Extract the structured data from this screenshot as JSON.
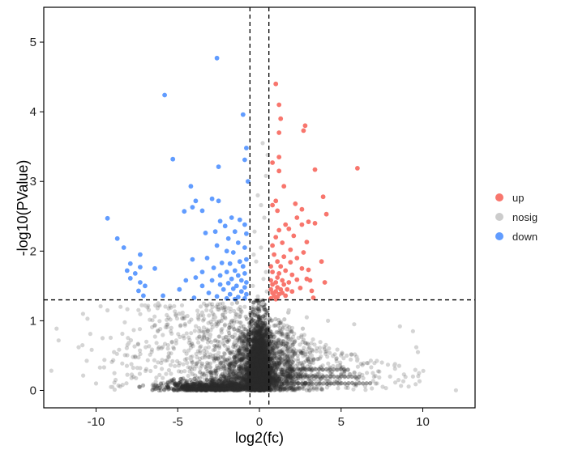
{
  "chart_data": {
    "type": "scatter",
    "title": "",
    "xlabel": "log2(fc)",
    "ylabel": "-log10(PValue)",
    "xlim": [
      -13.2,
      13.2
    ],
    "ylim": [
      -0.25,
      5.5
    ],
    "x_ticks": [
      -10,
      -5,
      0,
      5,
      10
    ],
    "x_tick_labels": [
      "-10",
      "-5",
      "0",
      "5",
      "10"
    ],
    "y_ticks": [
      0,
      1,
      2,
      3,
      4,
      5
    ],
    "y_tick_labels": [
      "0",
      "1",
      "2",
      "3",
      "4",
      "5"
    ],
    "thresholds": {
      "log2fc": [
        -0.58,
        0.58
      ],
      "neg_log10_p": 1.3
    },
    "grid": false,
    "legend_position": "right",
    "colors": {
      "up": "#F8766D",
      "nosig": "#CCCCCC",
      "down": "#619CFF",
      "threshold_line": "#000000"
    },
    "series": [
      {
        "name": "up",
        "points": [
          [
            1.0,
            4.4
          ],
          [
            1.2,
            4.1
          ],
          [
            1.3,
            3.9
          ],
          [
            1.2,
            3.7
          ],
          [
            2.8,
            3.8
          ],
          [
            2.7,
            3.73
          ],
          [
            1.2,
            3.35
          ],
          [
            0.8,
            3.27
          ],
          [
            1.2,
            3.15
          ],
          [
            3.4,
            3.17
          ],
          [
            6.0,
            3.19
          ],
          [
            1.5,
            2.93
          ],
          [
            1.0,
            2.72
          ],
          [
            3.9,
            2.78
          ],
          [
            0.8,
            2.66
          ],
          [
            1.1,
            2.58
          ],
          [
            2.2,
            2.68
          ],
          [
            2.6,
            2.6
          ],
          [
            4.1,
            2.53
          ],
          [
            2.3,
            2.48
          ],
          [
            3.0,
            2.42
          ],
          [
            1.6,
            2.38
          ],
          [
            2.6,
            2.38
          ],
          [
            3.4,
            2.4
          ],
          [
            1.2,
            2.3
          ],
          [
            1.8,
            2.32
          ],
          [
            2.1,
            2.22
          ],
          [
            1.0,
            2.2
          ],
          [
            2.9,
            2.13
          ],
          [
            1.4,
            2.12
          ],
          [
            0.8,
            2.08
          ],
          [
            1.9,
            2.02
          ],
          [
            2.7,
            1.98
          ],
          [
            0.9,
            1.95
          ],
          [
            1.5,
            1.92
          ],
          [
            2.3,
            1.9
          ],
          [
            1.1,
            1.85
          ],
          [
            1.9,
            1.84
          ],
          [
            3.8,
            1.85
          ],
          [
            0.7,
            1.78
          ],
          [
            1.3,
            1.78
          ],
          [
            2.6,
            1.75
          ],
          [
            1.6,
            1.72
          ],
          [
            3.0,
            1.73
          ],
          [
            0.8,
            1.7
          ],
          [
            1.2,
            1.68
          ],
          [
            2.0,
            1.66
          ],
          [
            1.1,
            1.62
          ],
          [
            2.9,
            1.6
          ],
          [
            0.7,
            1.58
          ],
          [
            1.4,
            1.58
          ],
          [
            2.3,
            1.59
          ],
          [
            3.1,
            1.58
          ],
          [
            1.0,
            1.55
          ],
          [
            1.8,
            1.55
          ],
          [
            0.8,
            1.52
          ],
          [
            1.5,
            1.52
          ],
          [
            4.0,
            1.55
          ],
          [
            1.1,
            1.48
          ],
          [
            2.5,
            1.47
          ],
          [
            0.7,
            1.45
          ],
          [
            1.3,
            1.45
          ],
          [
            1.7,
            1.45
          ],
          [
            1.0,
            1.42
          ],
          [
            2.0,
            1.42
          ],
          [
            3.2,
            1.43
          ],
          [
            0.8,
            1.4
          ],
          [
            1.4,
            1.4
          ],
          [
            1.2,
            1.38
          ],
          [
            0.9,
            1.36
          ],
          [
            1.6,
            1.36
          ],
          [
            1.1,
            1.34
          ],
          [
            3.3,
            1.33
          ],
          [
            0.7,
            1.32
          ],
          [
            1.0,
            1.31
          ]
        ]
      },
      {
        "name": "nosig",
        "points": [
          [
            -10.8,
            1.1
          ],
          [
            -9.3,
            1.15
          ],
          [
            -8.5,
            1.2
          ],
          [
            -7.0,
            1.22
          ],
          [
            -6.2,
            1.25
          ],
          [
            -4.8,
            1.1
          ],
          [
            -3.5,
            1.12
          ],
          [
            -2.7,
            1.05
          ],
          [
            -1.9,
            1.18
          ],
          [
            -0.9,
            1.2
          ],
          [
            0.2,
            1.25
          ],
          [
            1.8,
            1.15
          ],
          [
            2.9,
            1.05
          ],
          [
            4.2,
            1.0
          ],
          [
            5.8,
            0.95
          ],
          [
            8.6,
            0.92
          ],
          [
            9.4,
            0.85
          ],
          [
            9.6,
            0.62
          ],
          [
            9.7,
            0.55
          ],
          [
            -9.6,
            0.75
          ],
          [
            -8.9,
            0.55
          ],
          [
            -8.0,
            0.68
          ],
          [
            -7.3,
            0.32
          ],
          [
            -5.6,
            0.6
          ],
          [
            -4.2,
            0.45
          ],
          [
            -3.0,
            0.8
          ],
          [
            -1.5,
            0.7
          ],
          [
            1.5,
            0.6
          ],
          [
            3.2,
            0.5
          ],
          [
            4.8,
            0.35
          ],
          [
            6.0,
            0.45
          ],
          [
            7.5,
            0.4
          ],
          [
            8.3,
            0.38
          ],
          [
            8.0,
            0.2
          ],
          [
            9.4,
            0.2
          ],
          [
            -10.0,
            0.1
          ],
          [
            -9.0,
            0.05
          ],
          [
            0.4,
            1.7
          ],
          [
            -0.2,
            1.85
          ],
          [
            0.1,
            2.05
          ],
          [
            -0.3,
            2.28
          ],
          [
            0.3,
            2.48
          ],
          [
            0.1,
            2.66
          ],
          [
            -0.1,
            2.8
          ],
          [
            0.4,
            3.08
          ],
          [
            0.5,
            3.38
          ],
          [
            0.2,
            3.55
          ],
          [
            -0.4,
            1.5
          ],
          [
            0.45,
            1.42
          ],
          [
            -0.1,
            1.35
          ],
          [
            0.25,
            1.6
          ],
          [
            -0.35,
            1.95
          ]
        ]
      },
      {
        "name": "down",
        "points": [
          [
            -2.6,
            4.77
          ],
          [
            -5.8,
            4.24
          ],
          [
            -1.0,
            3.96
          ],
          [
            -0.8,
            3.48
          ],
          [
            -5.3,
            3.32
          ],
          [
            -0.9,
            3.31
          ],
          [
            -2.5,
            3.21
          ],
          [
            -0.7,
            3.0
          ],
          [
            -4.2,
            2.93
          ],
          [
            -2.9,
            2.75
          ],
          [
            -4.1,
            2.63
          ],
          [
            -3.9,
            2.72
          ],
          [
            -2.5,
            2.72
          ],
          [
            -3.5,
            2.58
          ],
          [
            -9.3,
            2.47
          ],
          [
            -4.6,
            2.57
          ],
          [
            -1.7,
            2.48
          ],
          [
            -2.4,
            2.43
          ],
          [
            -1.2,
            2.45
          ],
          [
            -0.9,
            2.38
          ],
          [
            -2.1,
            2.36
          ],
          [
            -1.5,
            2.28
          ],
          [
            -2.7,
            2.28
          ],
          [
            -3.3,
            2.26
          ],
          [
            -0.8,
            2.25
          ],
          [
            -1.9,
            2.18
          ],
          [
            -8.7,
            2.18
          ],
          [
            -1.3,
            2.12
          ],
          [
            -2.6,
            2.08
          ],
          [
            -0.9,
            2.05
          ],
          [
            -8.3,
            2.05
          ],
          [
            -2.0,
            2.0
          ],
          [
            -1.6,
            1.98
          ],
          [
            -7.3,
            1.95
          ],
          [
            -4.1,
            1.88
          ],
          [
            -3.2,
            1.9
          ],
          [
            -0.8,
            1.88
          ],
          [
            -1.2,
            1.85
          ],
          [
            -2.3,
            1.83
          ],
          [
            -1.8,
            1.82
          ],
          [
            -7.9,
            1.82
          ],
          [
            -1.0,
            1.78
          ],
          [
            -2.8,
            1.76
          ],
          [
            -6.4,
            1.75
          ],
          [
            -7.3,
            1.77
          ],
          [
            -8.1,
            1.72
          ],
          [
            -1.5,
            1.72
          ],
          [
            -2.0,
            1.7
          ],
          [
            -3.5,
            1.7
          ],
          [
            -0.9,
            1.68
          ],
          [
            -7.6,
            1.68
          ],
          [
            -1.3,
            1.65
          ],
          [
            -2.4,
            1.65
          ],
          [
            -3.9,
            1.62
          ],
          [
            -1.7,
            1.6
          ],
          [
            -7.9,
            1.61
          ],
          [
            -7.3,
            1.55
          ],
          [
            -1.1,
            1.58
          ],
          [
            -2.9,
            1.58
          ],
          [
            -4.5,
            1.58
          ],
          [
            -0.8,
            1.55
          ],
          [
            -1.9,
            1.54
          ],
          [
            -2.4,
            1.52
          ],
          [
            -3.5,
            1.5
          ],
          [
            -7.0,
            1.5
          ],
          [
            -1.4,
            1.5
          ],
          [
            -0.9,
            1.48
          ],
          [
            -1.6,
            1.46
          ],
          [
            -4.9,
            1.45
          ],
          [
            -2.2,
            1.45
          ],
          [
            -7.4,
            1.43
          ],
          [
            -1.1,
            1.42
          ],
          [
            -3.1,
            1.4
          ],
          [
            -0.8,
            1.38
          ],
          [
            -5.9,
            1.36
          ],
          [
            -1.8,
            1.38
          ],
          [
            -7.1,
            1.36
          ],
          [
            -2.6,
            1.35
          ],
          [
            -1.3,
            1.34
          ],
          [
            -0.9,
            1.32
          ],
          [
            -2.0,
            1.32
          ],
          [
            -4.0,
            1.33
          ],
          [
            -1.5,
            1.31
          ]
        ]
      }
    ]
  },
  "legend": {
    "items": [
      {
        "label": "up",
        "color": "#F8766D"
      },
      {
        "label": "nosig",
        "color": "#CCCCCC"
      },
      {
        "label": "down",
        "color": "#619CFF"
      }
    ]
  }
}
